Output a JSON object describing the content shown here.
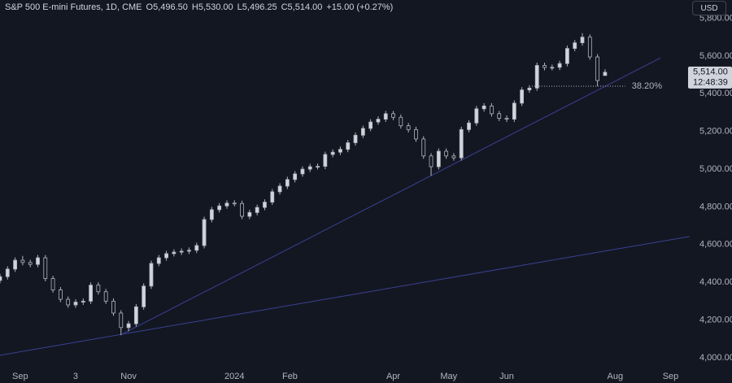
{
  "chart_data": {
    "type": "candlestick",
    "title": "S&P 500 E-mini Futures, 1D, CME",
    "legend_values": [
      "O5,496.50",
      "H5,530.00",
      "L5,496.25",
      "C5,514.00",
      "+15.00 (+0.27%)"
    ],
    "currency": "USD",
    "price_tag": "5,514.00",
    "countdown": "12:48:39",
    "x": [
      0,
      3,
      6,
      9,
      12,
      15,
      18,
      21,
      24,
      27,
      30,
      33,
      36,
      39,
      42,
      45,
      48,
      51,
      54,
      57,
      60,
      63,
      66,
      69,
      72,
      75,
      78,
      81,
      84,
      87,
      90,
      93,
      96,
      99,
      102,
      105,
      108,
      111,
      114,
      117,
      120,
      123,
      126,
      129,
      132,
      135,
      138,
      141,
      144,
      147,
      150,
      153,
      156,
      159,
      162,
      165,
      168,
      171,
      174,
      177,
      180,
      183,
      186,
      189,
      192,
      195,
      198,
      201,
      204,
      207,
      210,
      213,
      216,
      219,
      222,
      225,
      228,
      231,
      234,
      237,
      240
    ],
    "open": [
      4410,
      4430,
      4470,
      4517,
      4505,
      4495,
      4530,
      4420,
      4360,
      4310,
      4280,
      4295,
      4300,
      4385,
      4350,
      4300,
      4237,
      4160,
      4180,
      4270,
      4380,
      4500,
      4530,
      4552,
      4560,
      4565,
      4570,
      4595,
      4733,
      4785,
      4805,
      4820,
      4818,
      4750,
      4770,
      4797,
      4825,
      4880,
      4910,
      4945,
      4975,
      5000,
      5013,
      5015,
      5078,
      5090,
      5105,
      5140,
      5180,
      5216,
      5250,
      5265,
      5294,
      5275,
      5230,
      5210,
      5160,
      5070,
      5013,
      5095,
      5070,
      5060,
      5210,
      5245,
      5320,
      5335,
      5294,
      5270,
      5265,
      5350,
      5420,
      5430,
      5550,
      5539,
      5540,
      5560,
      5640,
      5670,
      5700,
      5595,
      5496.5
    ],
    "high": [
      4445,
      4485,
      4532,
      4540,
      4520,
      4545,
      4545,
      4435,
      4375,
      4325,
      4310,
      4315,
      4400,
      4400,
      4365,
      4315,
      4252,
      4195,
      4285,
      4395,
      4515,
      4545,
      4567,
      4575,
      4580,
      4585,
      4610,
      4748,
      4800,
      4820,
      4835,
      4835,
      4833,
      4785,
      4812,
      4840,
      4895,
      4925,
      4960,
      4990,
      5015,
      5028,
      5030,
      5093,
      5105,
      5120,
      5155,
      5195,
      5231,
      5265,
      5280,
      5309,
      5309,
      5290,
      5245,
      5225,
      5175,
      5085,
      5110,
      5110,
      5085,
      5225,
      5260,
      5335,
      5350,
      5350,
      5309,
      5285,
      5365,
      5435,
      5445,
      5565,
      5565,
      5555,
      5575,
      5655,
      5685,
      5721,
      5715,
      5610,
      5530
    ],
    "low": [
      4395,
      4415,
      4455,
      4490,
      4480,
      4480,
      4405,
      4345,
      4295,
      4265,
      4265,
      4280,
      4285,
      4335,
      4285,
      4222,
      4120,
      4140,
      4165,
      4255,
      4365,
      4485,
      4515,
      4537,
      4545,
      4550,
      4555,
      4580,
      4718,
      4770,
      4790,
      4803,
      4735,
      4735,
      4755,
      4782,
      4810,
      4865,
      4895,
      4930,
      4960,
      4985,
      4998,
      5000,
      5063,
      5075,
      5090,
      5125,
      5165,
      5201,
      5235,
      5250,
      5260,
      5215,
      5195,
      5145,
      5055,
      4965,
      4998,
      5055,
      5045,
      5045,
      5195,
      5230,
      5305,
      5279,
      5255,
      5250,
      5250,
      5335,
      5405,
      5415,
      5524,
      5524,
      5525,
      5545,
      5625,
      5655,
      5580,
      5440,
      5496.25
    ],
    "close": [
      4430,
      4470,
      4517,
      4505,
      4495,
      4530,
      4420,
      4360,
      4310,
      4280,
      4295,
      4300,
      4385,
      4350,
      4300,
      4237,
      4160,
      4180,
      4270,
      4380,
      4500,
      4530,
      4552,
      4560,
      4565,
      4570,
      4595,
      4733,
      4785,
      4805,
      4820,
      4818,
      4750,
      4770,
      4797,
      4825,
      4880,
      4910,
      4945,
      4975,
      5000,
      5013,
      5015,
      5078,
      5090,
      5105,
      5140,
      5180,
      5216,
      5250,
      5265,
      5294,
      5275,
      5230,
      5210,
      5160,
      5070,
      5013,
      5095,
      5070,
      5060,
      5210,
      5245,
      5320,
      5335,
      5294,
      5270,
      5265,
      5350,
      5420,
      5430,
      5550,
      5539,
      5540,
      5560,
      5640,
      5670,
      5700,
      5595,
      5470,
      5514
    ],
    "up_color": "#d1d4dc",
    "down_color": "#131722",
    "wick_color": "#b2b5be",
    "trendlines": [
      {
        "x": [
          47.7,
          262
        ],
        "y": [
          4120,
          5590
        ],
        "color": "#3a4192"
      },
      {
        "x": [
          0,
          273.5
        ],
        "y": [
          4013,
          4643
        ],
        "color": "#3a4192"
      }
    ],
    "fib": {
      "value": 5440,
      "label": "38.20%",
      "x": [
        211,
        248
      ],
      "color": "#b2b5be"
    },
    "xlim": [
      0,
      271
    ],
    "ylim": [
      3948,
      5897
    ],
    "xticks": [
      {
        "value": 8,
        "label": "Sep"
      },
      {
        "value": 30,
        "label": "3"
      },
      {
        "value": 51,
        "label": "Nov"
      },
      {
        "value": 93,
        "label": "2024"
      },
      {
        "value": 115,
        "label": "Feb"
      },
      {
        "value": 156,
        "label": "Apr"
      },
      {
        "value": 178,
        "label": "May"
      },
      {
        "value": 201,
        "label": "Jun"
      },
      {
        "value": 244,
        "label": "Aug"
      },
      {
        "value": 266,
        "label": "Sep"
      }
    ],
    "yticks": [
      {
        "value": 4000,
        "label": "4,000.00"
      },
      {
        "value": 4200,
        "label": "4,200.00"
      },
      {
        "value": 4400,
        "label": "4,400.00"
      },
      {
        "value": 4600,
        "label": "4,600.00"
      },
      {
        "value": 4800,
        "label": "4,800.00"
      },
      {
        "value": 5000,
        "label": "5,000.00"
      },
      {
        "value": 5200,
        "label": "5,200.00"
      },
      {
        "value": 5400,
        "label": "5,400.00"
      },
      {
        "value": 5600,
        "label": "5,600.00"
      },
      {
        "value": 5800,
        "label": "5,800.00"
      }
    ],
    "grid": false
  }
}
